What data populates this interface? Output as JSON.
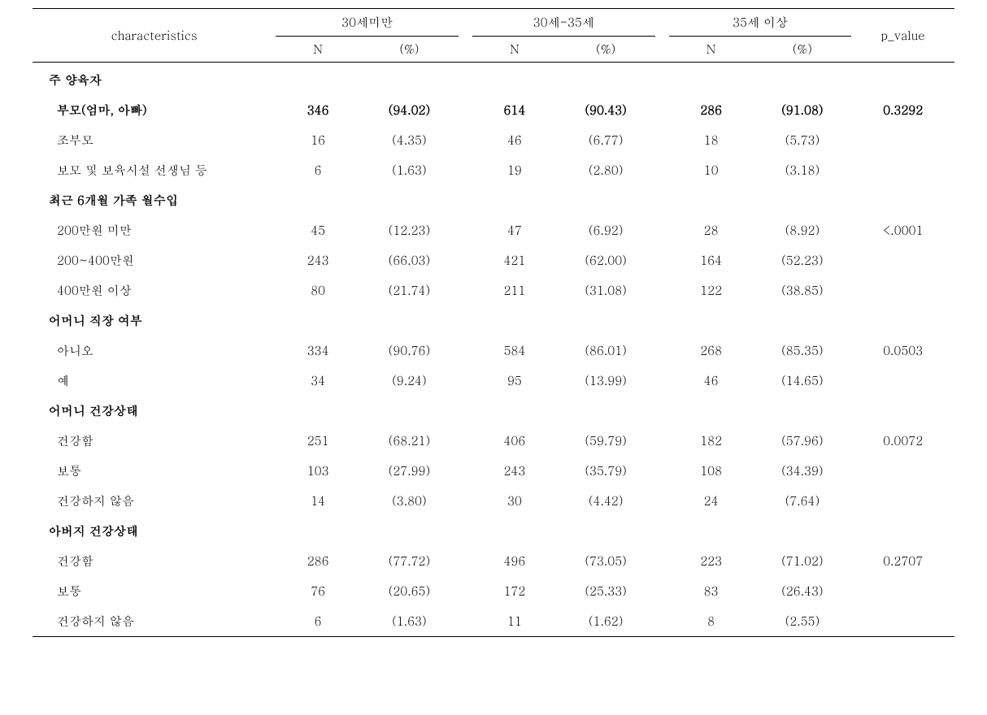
{
  "header": {
    "characteristics": "characteristics",
    "group1": "30세미만",
    "group2": "30세-35세",
    "group3": "35세 이상",
    "pvalue": "p_value",
    "n_label": "N",
    "pct_label": "(%)"
  },
  "sections": [
    {
      "title": "주 양육자",
      "rows": [
        {
          "label": "부모(엄마, 아빠)",
          "bold": true,
          "g1n": "346",
          "g1p": "(94.02)",
          "g2n": "614",
          "g2p": "(90.43)",
          "g3n": "286",
          "g3p": "(91.08)",
          "pval": "0.3292"
        },
        {
          "label": "조부모",
          "g1n": "16",
          "g1p": "(4.35)",
          "g2n": "46",
          "g2p": "(6.77)",
          "g3n": "18",
          "g3p": "(5.73)",
          "pval": ""
        },
        {
          "label": "보모 및 보육시설 선생님 등",
          "g1n": "6",
          "g1p": "(1.63)",
          "g2n": "19",
          "g2p": "(2.80)",
          "g3n": "10",
          "g3p": "(3.18)",
          "pval": ""
        }
      ]
    },
    {
      "title": "최근 6개월 가족 월수입",
      "rows": [
        {
          "label": "200만원 미만",
          "g1n": "45",
          "g1p": "(12.23)",
          "g2n": "47",
          "g2p": "(6.92)",
          "g3n": "28",
          "g3p": "(8.92)",
          "pval": "<.0001"
        },
        {
          "label": "200~400만원",
          "g1n": "243",
          "g1p": "(66.03)",
          "g2n": "421",
          "g2p": "(62.00)",
          "g3n": "164",
          "g3p": "(52.23)",
          "pval": ""
        },
        {
          "label": "400만원 이상",
          "g1n": "80",
          "g1p": "(21.74)",
          "g2n": "211",
          "g2p": "(31.08)",
          "g3n": "122",
          "g3p": "(38.85)",
          "pval": ""
        }
      ]
    },
    {
      "title": "어머니 직장 여부",
      "rows": [
        {
          "label": "아니오",
          "g1n": "334",
          "g1p": "(90.76)",
          "g2n": "584",
          "g2p": "(86.01)",
          "g3n": "268",
          "g3p": "(85.35)",
          "pval": "0.0503"
        },
        {
          "label": "예",
          "g1n": "34",
          "g1p": "(9.24)",
          "g2n": "95",
          "g2p": "(13.99)",
          "g3n": "46",
          "g3p": "(14.65)",
          "pval": ""
        }
      ]
    },
    {
      "title": "어머니 건강상태",
      "rows": [
        {
          "label": "건강함",
          "g1n": "251",
          "g1p": "(68.21)",
          "g2n": "406",
          "g2p": "(59.79)",
          "g3n": "182",
          "g3p": "(57.96)",
          "pval": "0.0072"
        },
        {
          "label": "보통",
          "g1n": "103",
          "g1p": "(27.99)",
          "g2n": "243",
          "g2p": "(35.79)",
          "g3n": "108",
          "g3p": "(34.39)",
          "pval": ""
        },
        {
          "label": "건강하지 않음",
          "g1n": "14",
          "g1p": "(3.80)",
          "g2n": "30",
          "g2p": "(4.42)",
          "g3n": "24",
          "g3p": "(7.64)",
          "pval": ""
        }
      ]
    },
    {
      "title": "아버지 건강상태",
      "rows": [
        {
          "label": "건강함",
          "g1n": "286",
          "g1p": "(77.72)",
          "g2n": "496",
          "g2p": "(73.05)",
          "g3n": "223",
          "g3p": "(71.02)",
          "pval": "0.2707"
        },
        {
          "label": "보통",
          "g1n": "76",
          "g1p": "(20.65)",
          "g2n": "172",
          "g2p": "(25.33)",
          "g3n": "83",
          "g3p": "(26.43)",
          "pval": ""
        },
        {
          "label": "건강하지 않음",
          "g1n": "6",
          "g1p": "(1.63)",
          "g2n": "11",
          "g2p": "(1.62)",
          "g3n": "8",
          "g3p": "(2.55)",
          "pval": ""
        }
      ]
    }
  ]
}
